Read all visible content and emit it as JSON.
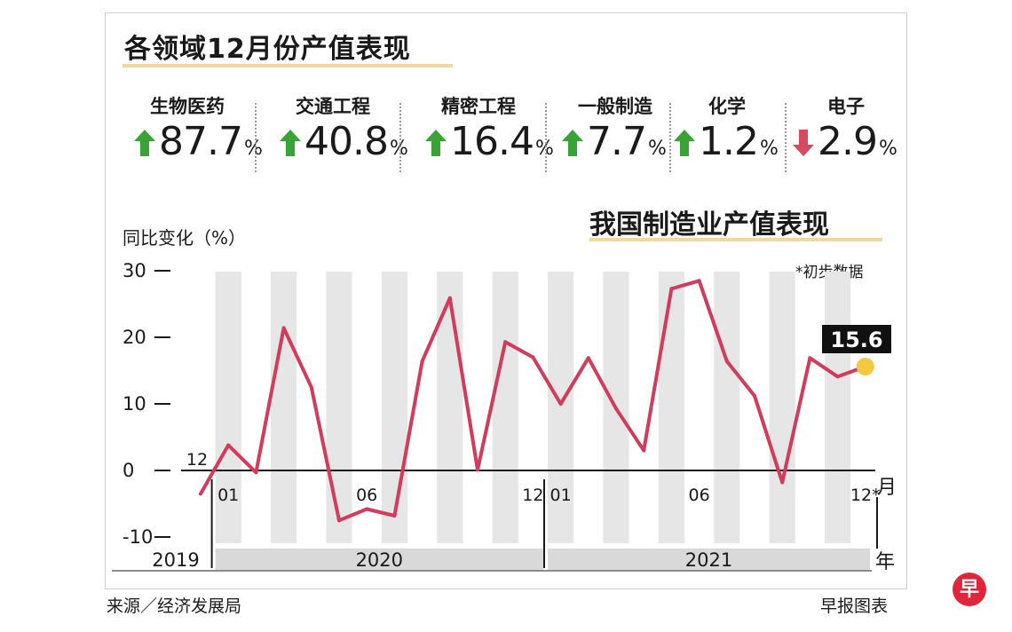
{
  "title": "各领域12月份产值表现",
  "metrics": [
    {
      "label": "生物医药",
      "value": "87.7",
      "unit": "%",
      "direction": "up"
    },
    {
      "label": "交通工程",
      "value": "40.8",
      "unit": "%",
      "direction": "up"
    },
    {
      "label": "精密工程",
      "value": "16.4",
      "unit": "%",
      "direction": "up"
    },
    {
      "label": "一般制造",
      "value": "7.7",
      "unit": "%",
      "direction": "up"
    },
    {
      "label": "化学",
      "value": "1.2",
      "unit": "%",
      "direction": "up"
    },
    {
      "label": "电子",
      "value": "2.9",
      "unit": "%",
      "direction": "down"
    }
  ],
  "colors": {
    "up_arrow": "#3aa335",
    "down_arrow": "#d64a60",
    "line": "#d23c5c",
    "last_point": "#f5c842",
    "stripe": "#e6e6e6",
    "year_band": "#d9d9d9",
    "title_highlight": "#f2d99a"
  },
  "chart_data": {
    "type": "line",
    "title": "我国制造业产值表现",
    "ylabel": "同比变化（%）",
    "note": "*初步数据",
    "ylim": [
      -10,
      30
    ],
    "yticks": [
      30,
      20,
      10,
      0,
      -10
    ],
    "x": [
      "2019-12",
      "2020-01",
      "2020-02",
      "2020-03",
      "2020-04",
      "2020-05",
      "2020-06",
      "2020-07",
      "2020-08",
      "2020-09",
      "2020-10",
      "2020-11",
      "2020-12",
      "2021-01",
      "2021-02",
      "2021-03",
      "2021-04",
      "2021-05",
      "2021-06",
      "2021-07",
      "2021-08",
      "2021-09",
      "2021-10",
      "2021-11",
      "2021-12"
    ],
    "series": [
      {
        "values": [
          -3.5,
          3.8,
          -0.3,
          21.4,
          12.5,
          -7.5,
          -5.8,
          -6.8,
          16.4,
          25.9,
          0.1,
          19.3,
          17.0,
          10.0,
          16.9,
          9.3,
          3.0,
          27.3,
          28.5,
          16.4,
          11.2,
          -1.8,
          16.9,
          14.1,
          15.6
        ]
      }
    ],
    "month_ticks": [
      {
        "index": 0,
        "label": "12"
      },
      {
        "index": 1,
        "label": "01"
      },
      {
        "index": 6,
        "label": "06"
      },
      {
        "index": 12,
        "label": "12"
      },
      {
        "index": 13,
        "label": "01"
      },
      {
        "index": 18,
        "label": "06"
      },
      {
        "index": 24,
        "label": "12*"
      }
    ],
    "years": [
      {
        "label": "2019",
        "start": 0,
        "end": 0
      },
      {
        "label": "2020",
        "start": 1,
        "end": 12
      },
      {
        "label": "2021",
        "start": 13,
        "end": 24
      }
    ],
    "x_unit": "月",
    "year_unit": "年",
    "last_label": "15.6"
  },
  "footer": {
    "source": "来源／经济发展局",
    "brand": "早报图表",
    "logo_char": "早"
  }
}
